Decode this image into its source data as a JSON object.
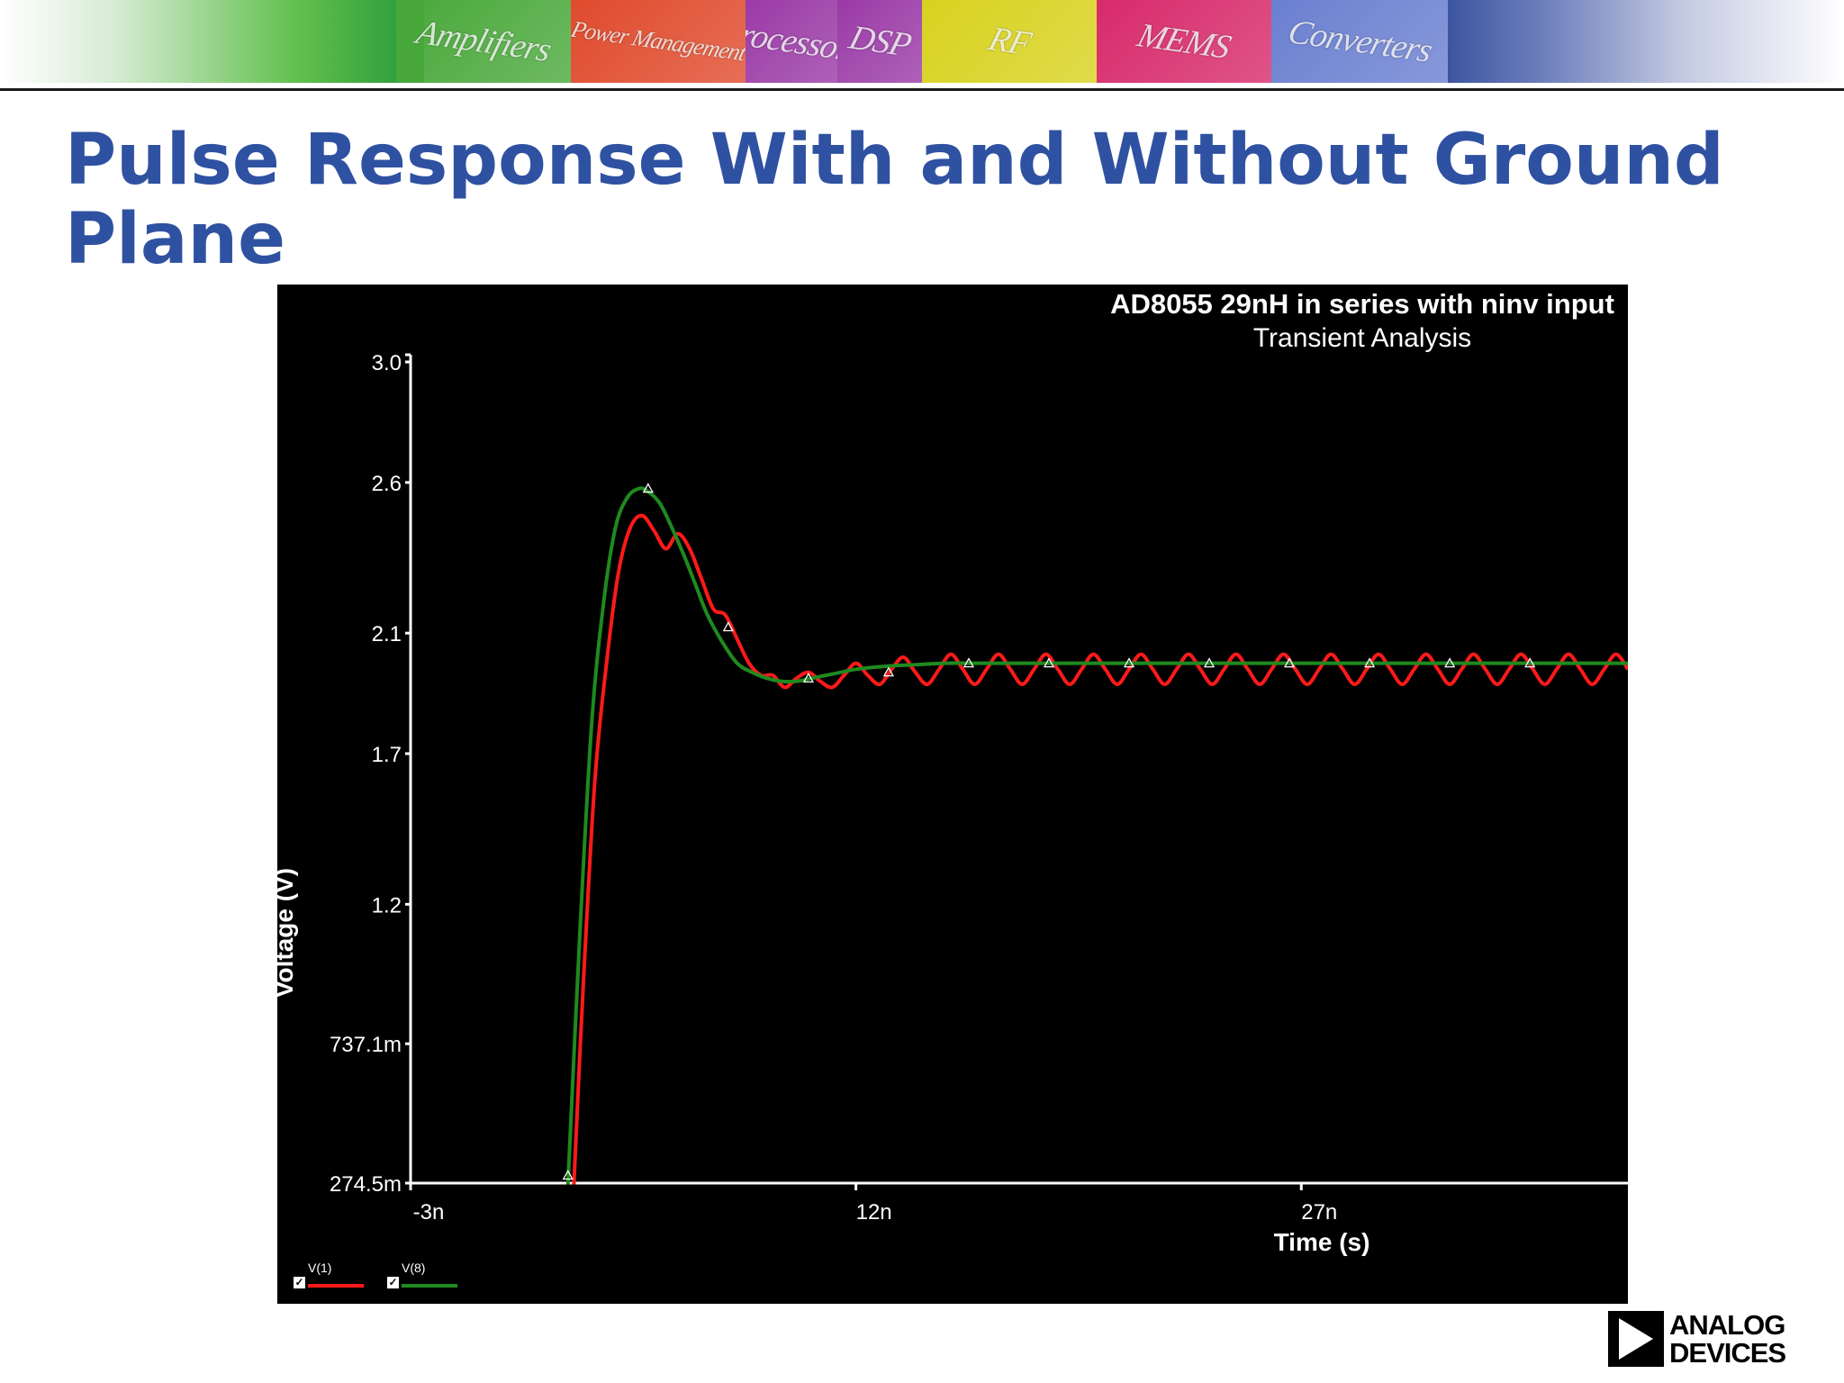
{
  "banner": {
    "tiles": [
      {
        "label": "Amplifiers",
        "color": "#49a83a"
      },
      {
        "label": "Power Management",
        "color": "#e04a2c"
      },
      {
        "label": "Processors",
        "color": "#9a3aa6"
      },
      {
        "label": "DSP",
        "color": "#9a3aa6"
      },
      {
        "label": "RF",
        "color": "#d8d21e"
      },
      {
        "label": "MEMS",
        "color": "#d72a6a"
      },
      {
        "label": "Converters",
        "color": "#6a7fd0"
      }
    ]
  },
  "slide": {
    "title": "Pulse Response With and Without Ground Plane"
  },
  "logo": {
    "line1": "ANALOG",
    "line2": "DEVICES"
  },
  "chart_data": {
    "type": "line",
    "title": "AD8055 29nH in series with ninv input",
    "subtitle": "Transient Analysis",
    "xlabel": "Time (s)",
    "ylabel": "Voltage (V)",
    "xlim": [
      -3,
      38
    ],
    "ylim": [
      0.2745,
      3.0
    ],
    "x_unit_suffix": "n",
    "x_ticks": [
      {
        "value": -3,
        "label": "-3n"
      },
      {
        "value": 12,
        "label": "12n"
      },
      {
        "value": 27,
        "label": "27n"
      }
    ],
    "y_ticks": [
      {
        "value": 3.0,
        "label": "3.0"
      },
      {
        "value": 2.6,
        "label": "2.6"
      },
      {
        "value": 2.1,
        "label": "2.1"
      },
      {
        "value": 1.7,
        "label": "1.7"
      },
      {
        "value": 1.2,
        "label": "1.2"
      },
      {
        "value": 0.7371,
        "label": "737.1m"
      },
      {
        "value": 0.2745,
        "label": "274.5m"
      }
    ],
    "grid": false,
    "legend_position": "bottom-left",
    "series": [
      {
        "name": "V(1)",
        "color": "#ff1a1a",
        "x": [
          2.5,
          2.8,
          3.2,
          3.6,
          4.0,
          4.4,
          4.8,
          5.2,
          5.6,
          6.0,
          6.4,
          6.8,
          7.2,
          7.6,
          8.0,
          8.4,
          8.8,
          9.2,
          9.6,
          10.0,
          10.4,
          10.8,
          11.2,
          11.6,
          12.0,
          12.4,
          12.8,
          13.2,
          13.6,
          14.0,
          14.4,
          14.8,
          15.2,
          15.6,
          16.0,
          16.4,
          16.8,
          17.2,
          17.6,
          18.0,
          18.4,
          18.8,
          19.2,
          19.6,
          20.0,
          20.4,
          20.8,
          21.2,
          21.6,
          22.0,
          22.4,
          22.8,
          23.2,
          23.6,
          24.0,
          24.4,
          24.8,
          25.2,
          25.6,
          26.0,
          26.4,
          26.8,
          27.2,
          27.6,
          28.0,
          28.4,
          28.8,
          29.2,
          29.6,
          30.0,
          30.4,
          30.8,
          31.2,
          31.6,
          32.0,
          32.4,
          32.8,
          33.2,
          33.6,
          34.0,
          34.4,
          34.8,
          35.2,
          35.6,
          36.0,
          36.4,
          36.8,
          37.2,
          37.6,
          38.0
        ],
        "y": [
          0.27,
          0.9,
          1.6,
          2.0,
          2.3,
          2.45,
          2.49,
          2.44,
          2.38,
          2.43,
          2.38,
          2.28,
          2.18,
          2.16,
          2.08,
          2.0,
          1.96,
          1.96,
          1.92,
          1.95,
          1.97,
          1.94,
          1.92,
          1.96,
          2.0,
          1.96,
          1.93,
          1.98,
          2.02,
          1.97,
          1.93,
          1.98,
          2.03,
          1.98,
          1.93,
          1.98,
          2.03,
          1.98,
          1.93,
          1.98,
          2.03,
          1.98,
          1.93,
          1.98,
          2.03,
          1.98,
          1.93,
          1.98,
          2.03,
          1.98,
          1.93,
          1.98,
          2.03,
          1.98,
          1.93,
          1.98,
          2.03,
          1.98,
          1.93,
          1.98,
          2.03,
          1.98,
          1.93,
          1.98,
          2.03,
          1.98,
          1.93,
          1.98,
          2.03,
          1.98,
          1.93,
          1.98,
          2.03,
          1.98,
          1.93,
          1.98,
          2.03,
          1.98,
          1.93,
          1.98,
          2.03,
          1.98,
          1.93,
          1.98,
          2.03,
          1.98,
          1.93,
          1.98,
          2.03,
          1.98
        ]
      },
      {
        "name": "V(8)",
        "color": "#1f8a1f",
        "x": [
          2.3,
          2.7,
          3.1,
          3.5,
          3.9,
          4.3,
          4.7,
          5.0,
          5.4,
          5.8,
          6.2,
          6.6,
          7.0,
          7.5,
          8.0,
          8.5,
          9.0,
          9.5,
          10.0,
          10.5,
          11.0,
          11.5,
          12.0,
          13.0,
          14.0,
          15.0,
          16.0,
          18.0,
          20.0,
          24.0,
          28.0,
          32.0,
          36.0,
          38.0
        ],
        "y": [
          0.27,
          1.1,
          1.8,
          2.2,
          2.45,
          2.55,
          2.58,
          2.57,
          2.53,
          2.45,
          2.36,
          2.26,
          2.16,
          2.07,
          2.0,
          1.97,
          1.95,
          1.94,
          1.94,
          1.95,
          1.96,
          1.97,
          1.98,
          1.99,
          1.995,
          2.0,
          2.0,
          2.0,
          2.0,
          2.0,
          2.0,
          2.0,
          2.0,
          2.0
        ]
      }
    ],
    "markers": {
      "x": [
        2.3,
        5.0,
        7.7,
        10.4,
        13.1,
        15.8,
        18.5,
        21.2,
        23.9,
        26.6,
        29.3,
        32.0,
        34.7
      ],
      "y": [
        0.3,
        2.58,
        2.12,
        1.95,
        1.97,
        2.0,
        2.0,
        2.0,
        2.0,
        2.0,
        2.0,
        2.0,
        2.0
      ]
    }
  }
}
